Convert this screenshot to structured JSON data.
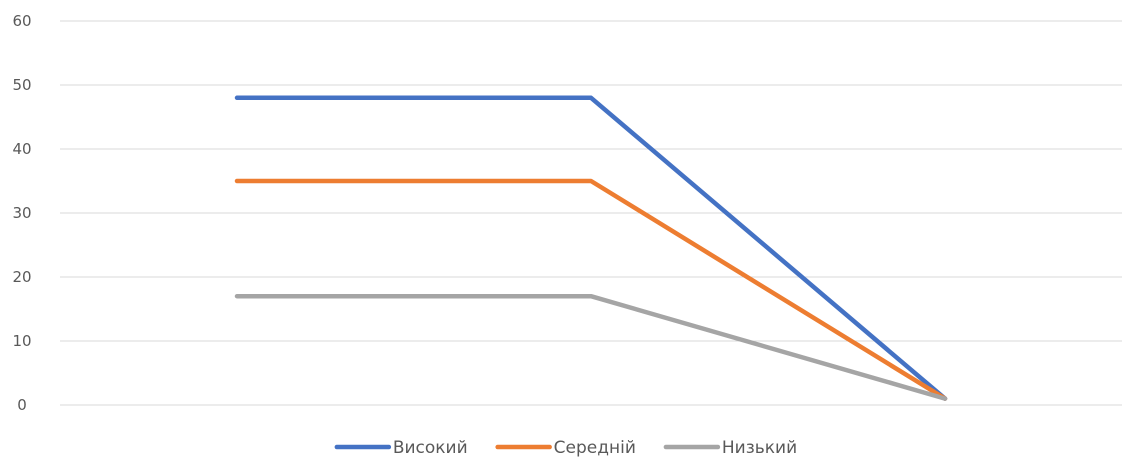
{
  "chart_data": {
    "type": "line",
    "categories": [
      "",
      "",
      ""
    ],
    "series": [
      {
        "name": "Високий",
        "color": "#4472C4",
        "values": [
          48,
          48,
          1
        ]
      },
      {
        "name": "Середній",
        "color": "#ED7D31",
        "values": [
          35,
          35,
          1
        ]
      },
      {
        "name": "Низький",
        "color": "#A5A5A5",
        "values": [
          17,
          17,
          1
        ]
      }
    ],
    "ylim": [
      0,
      60
    ],
    "yticks": [
      0,
      10,
      20,
      30,
      40,
      50,
      60
    ],
    "grid": true,
    "legend": "bottom",
    "gridline_color": "#D9D9D9"
  }
}
